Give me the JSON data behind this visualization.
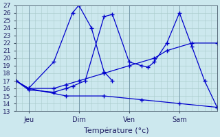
{
  "xlabel": "Température (°c)",
  "background_color": "#cce8ee",
  "line_color": "#0000cc",
  "grid_color": "#aacccc",
  "ylim": [
    13,
    27
  ],
  "yticks": [
    13,
    14,
    15,
    16,
    17,
    18,
    19,
    20,
    21,
    22,
    23,
    24,
    25,
    26,
    27
  ],
  "xlim": [
    0,
    96
  ],
  "day_positions": [
    6,
    30,
    54,
    78
  ],
  "day_labels": [
    "Jeu",
    "Dim",
    "Ven",
    "Sam"
  ],
  "series": [
    {
      "x": [
        0,
        6,
        18,
        27,
        30,
        36,
        42,
        46
      ],
      "y": [
        17,
        16,
        19.5,
        26,
        27,
        24.0,
        18.2,
        17.0
      ]
    },
    {
      "x": [
        0,
        6,
        18,
        24,
        27,
        33,
        42,
        46,
        54,
        60,
        63,
        66,
        72,
        78,
        84,
        90,
        96
      ],
      "y": [
        17,
        15.8,
        15.5,
        16.0,
        16.3,
        17.0,
        25.5,
        25.8,
        19.5,
        19.0,
        18.8,
        19.5,
        22.0,
        26.0,
        21.5,
        17.0,
        13.5
      ]
    },
    {
      "x": [
        0,
        6,
        18,
        24,
        30,
        42,
        54,
        66,
        72,
        84,
        96
      ],
      "y": [
        17,
        16,
        16.0,
        16.5,
        17.0,
        18.0,
        19.0,
        20.0,
        21.0,
        22.0,
        22.0
      ]
    },
    {
      "x": [
        0,
        6,
        24,
        42,
        60,
        78,
        96
      ],
      "y": [
        17,
        16,
        15,
        15,
        14.5,
        14.0,
        13.5
      ]
    }
  ]
}
